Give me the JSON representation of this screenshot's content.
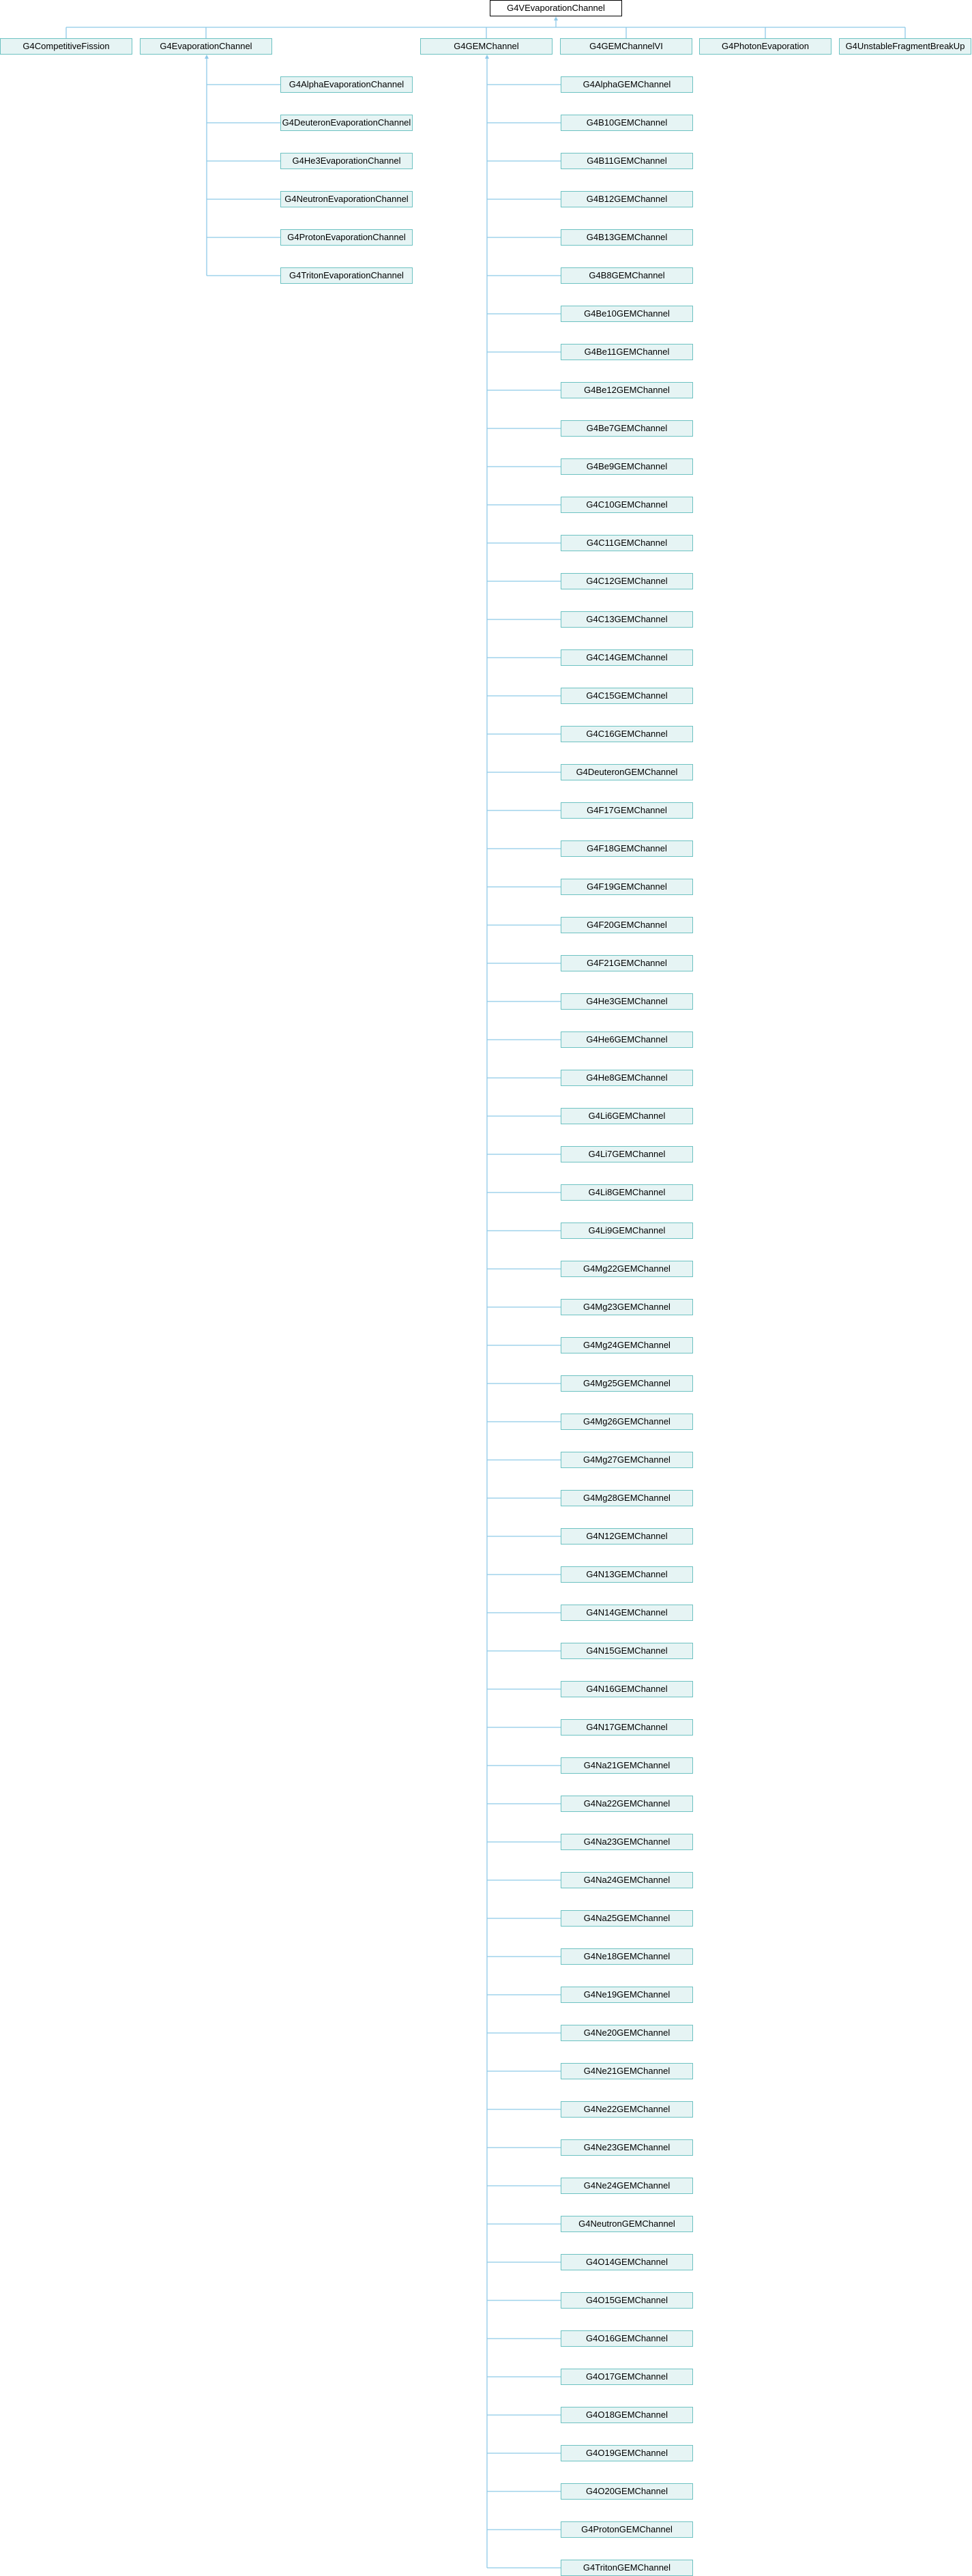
{
  "diagram": {
    "root": "G4VEvaporationChannel",
    "colors": {
      "edge": "#8ec9e8",
      "node_border": "#6dc2c2",
      "node_fill": "#e6f4f4",
      "root_border": "#000000"
    },
    "level1": [
      {
        "name": "G4CompetitiveFission",
        "children": []
      },
      {
        "name": "G4EvaporationChannel",
        "children": [
          "G4AlphaEvaporationChannel",
          "G4DeuteronEvaporationChannel",
          "G4He3EvaporationChannel",
          "G4NeutronEvaporationChannel",
          "G4ProtonEvaporationChannel",
          "G4TritonEvaporationChannel"
        ]
      },
      {
        "name": "G4GEMChannel",
        "children": [
          "G4AlphaGEMChannel",
          "G4B10GEMChannel",
          "G4B11GEMChannel",
          "G4B12GEMChannel",
          "G4B13GEMChannel",
          "G4B8GEMChannel",
          "G4Be10GEMChannel",
          "G4Be11GEMChannel",
          "G4Be12GEMChannel",
          "G4Be7GEMChannel",
          "G4Be9GEMChannel",
          "G4C10GEMChannel",
          "G4C11GEMChannel",
          "G4C12GEMChannel",
          "G4C13GEMChannel",
          "G4C14GEMChannel",
          "G4C15GEMChannel",
          "G4C16GEMChannel",
          "G4DeuteronGEMChannel",
          "G4F17GEMChannel",
          "G4F18GEMChannel",
          "G4F19GEMChannel",
          "G4F20GEMChannel",
          "G4F21GEMChannel",
          "G4He3GEMChannel",
          "G4He6GEMChannel",
          "G4He8GEMChannel",
          "G4Li6GEMChannel",
          "G4Li7GEMChannel",
          "G4Li8GEMChannel",
          "G4Li9GEMChannel",
          "G4Mg22GEMChannel",
          "G4Mg23GEMChannel",
          "G4Mg24GEMChannel",
          "G4Mg25GEMChannel",
          "G4Mg26GEMChannel",
          "G4Mg27GEMChannel",
          "G4Mg28GEMChannel",
          "G4N12GEMChannel",
          "G4N13GEMChannel",
          "G4N14GEMChannel",
          "G4N15GEMChannel",
          "G4N16GEMChannel",
          "G4N17GEMChannel",
          "G4Na21GEMChannel",
          "G4Na22GEMChannel",
          "G4Na23GEMChannel",
          "G4Na24GEMChannel",
          "G4Na25GEMChannel",
          "G4Ne18GEMChannel",
          "G4Ne19GEMChannel",
          "G4Ne20GEMChannel",
          "G4Ne21GEMChannel",
          "G4Ne22GEMChannel",
          "G4Ne23GEMChannel",
          "G4Ne24GEMChannel",
          "G4NeutronGEMChannel",
          "G4O14GEMChannel",
          "G4O15GEMChannel",
          "G4O16GEMChannel",
          "G4O17GEMChannel",
          "G4O18GEMChannel",
          "G4O19GEMChannel",
          "G4O20GEMChannel",
          "G4ProtonGEMChannel",
          "G4TritonGEMChannel"
        ]
      },
      {
        "name": "G4GEMChannelVI",
        "children": []
      },
      {
        "name": "G4PhotonEvaporation",
        "children": []
      },
      {
        "name": "G4UnstableFragmentBreakUp",
        "children": []
      }
    ]
  }
}
